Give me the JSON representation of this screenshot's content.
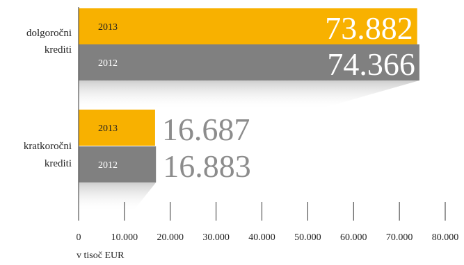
{
  "chart_data": {
    "type": "bar",
    "orientation": "horizontal",
    "categories": [
      "dolgoročni krediti",
      "kratkoročni krediti"
    ],
    "category_lines": [
      [
        "dolgoročni",
        "krediti"
      ],
      [
        "kratkoročni",
        "krediti"
      ]
    ],
    "series": [
      {
        "name": "2013",
        "values": [
          73882,
          16687
        ],
        "value_labels": [
          "73.882",
          "16.687"
        ],
        "color": "#f8b100"
      },
      {
        "name": "2012",
        "values": [
          74366,
          16883
        ],
        "value_labels": [
          "74.366",
          "16.883"
        ],
        "color": "#808080"
      }
    ],
    "xlim": [
      0,
      80000
    ],
    "ticks": [
      0,
      10000,
      20000,
      30000,
      40000,
      50000,
      60000,
      70000,
      80000
    ],
    "tick_labels": [
      "0",
      "10.000",
      "20.000",
      "30.000",
      "40.000",
      "50.000",
      "60.000",
      "70.000",
      "80.000"
    ],
    "xlabel": "v tisoč EUR",
    "grid": false,
    "colors": {
      "value_inside": "#ffffff",
      "value_outside": "#8c8c8c"
    }
  }
}
